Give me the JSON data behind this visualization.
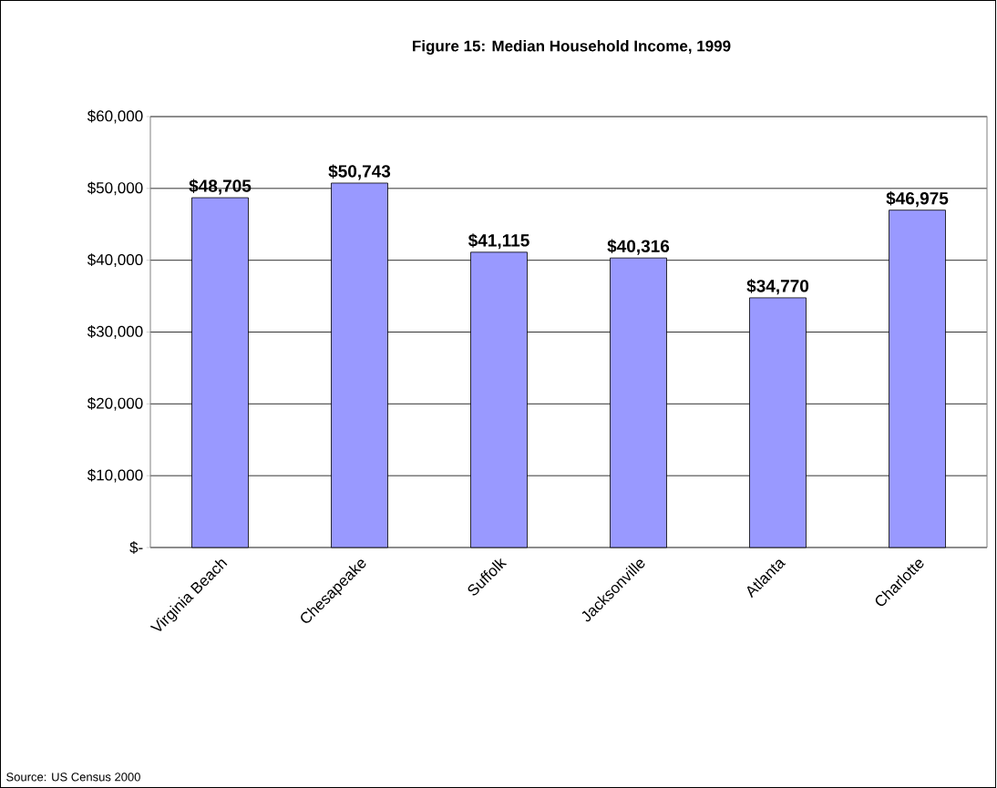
{
  "chart_data": {
    "type": "bar",
    "title": "Figure 15: Median Household Income, 1999",
    "categories": [
      "Virginia Beach",
      "Chesapeake",
      "Suffolk",
      "Jacksonville",
      "Atlanta",
      "Charlotte"
    ],
    "values": [
      48705,
      50743,
      41115,
      40316,
      34770,
      46975
    ],
    "value_labels": [
      "$48,705",
      "$50,743",
      "$41,115",
      "$40,316",
      "$34,770",
      "$46,975"
    ],
    "color": "#9999ff",
    "ylim": [
      0,
      60000
    ],
    "yticks": [
      {
        "value": 0,
        "label": "$-"
      },
      {
        "value": 10000,
        "label": "$10,000"
      },
      {
        "value": 20000,
        "label": "$20,000"
      },
      {
        "value": 30000,
        "label": "$30,000"
      },
      {
        "value": 40000,
        "label": "$40,000"
      },
      {
        "value": 50000,
        "label": "$50,000"
      },
      {
        "value": 60000,
        "label": "$60,000"
      }
    ],
    "grid": "y",
    "annotations": [
      "Source: US Census 2000"
    ]
  }
}
